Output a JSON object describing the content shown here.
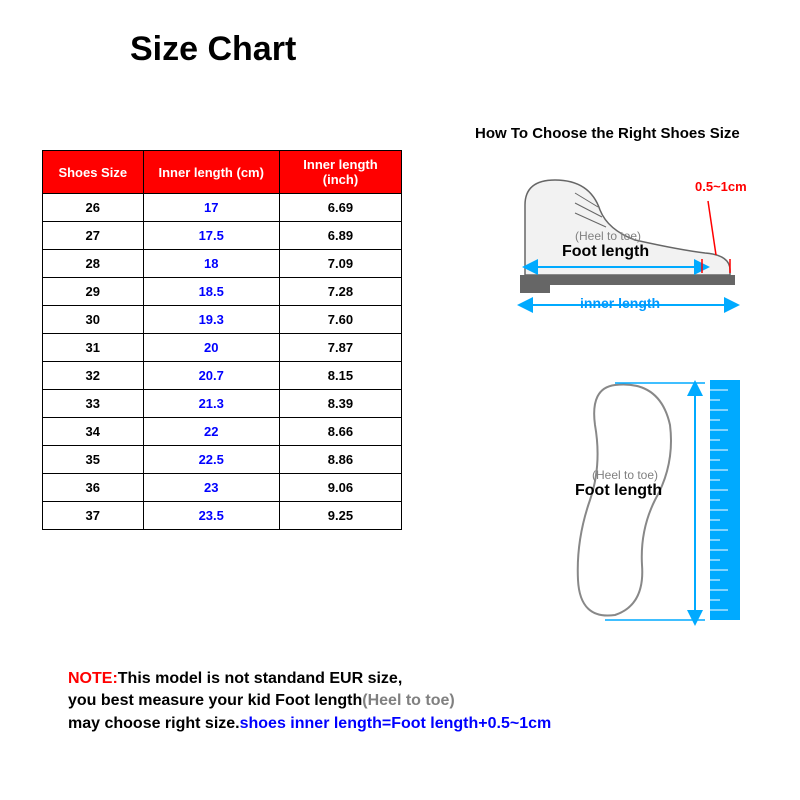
{
  "title": "Size Chart",
  "table": {
    "header_bg": "#ff0000",
    "header_color": "#ffffff",
    "border_color": "#000000",
    "blue_col_color": "#0000ff",
    "columns": [
      "Shoes Size",
      "Inner length (cm)",
      "Inner length (inch)"
    ],
    "rows": [
      [
        "26",
        "17",
        "6.69"
      ],
      [
        "27",
        "17.5",
        "6.89"
      ],
      [
        "28",
        "18",
        "7.09"
      ],
      [
        "29",
        "18.5",
        "7.28"
      ],
      [
        "30",
        "19.3",
        "7.60"
      ],
      [
        "31",
        "20",
        "7.87"
      ],
      [
        "32",
        "20.7",
        "8.15"
      ],
      [
        "33",
        "21.3",
        "8.39"
      ],
      [
        "34",
        "22",
        "8.66"
      ],
      [
        "35",
        "22.5",
        "8.86"
      ],
      [
        "36",
        "23",
        "9.06"
      ],
      [
        "37",
        "23.5",
        "9.25"
      ]
    ]
  },
  "howto_title": "How To Choose the Right  Shoes Size",
  "shoe_diagram": {
    "gap_label": "0.5~1cm",
    "gap_label_color": "#ff0000",
    "heel_toe_label": "(Heel to toe)",
    "heel_toe_color": "#808080",
    "foot_length_label": "Foot length",
    "foot_length_color": "#000000",
    "inner_length_label": "inner length",
    "inner_length_color": "#0099ff",
    "arrow_color": "#00aaff",
    "shoe_outline_color": "#666666",
    "shoe_fill": "#f2f2f2"
  },
  "insole_diagram": {
    "heel_toe_label": "(Heel to toe)",
    "heel_toe_color": "#808080",
    "foot_length_label": "Foot length",
    "foot_length_color": "#000000",
    "ruler_color": "#00aaff",
    "outline_color": "#888888"
  },
  "note": {
    "label": "NOTE:",
    "line1": "This model is not standand EUR size,",
    "line2a": "you best measure your kid Foot length",
    "line2b": "(Heel to toe)",
    "line3a": "may choose right size.",
    "line3b": "shoes inner length=Foot length+0.5~1cm",
    "colors": {
      "note": "#ff0000",
      "black": "#000000",
      "gray": "#808080",
      "blue": "#0000ff"
    }
  }
}
